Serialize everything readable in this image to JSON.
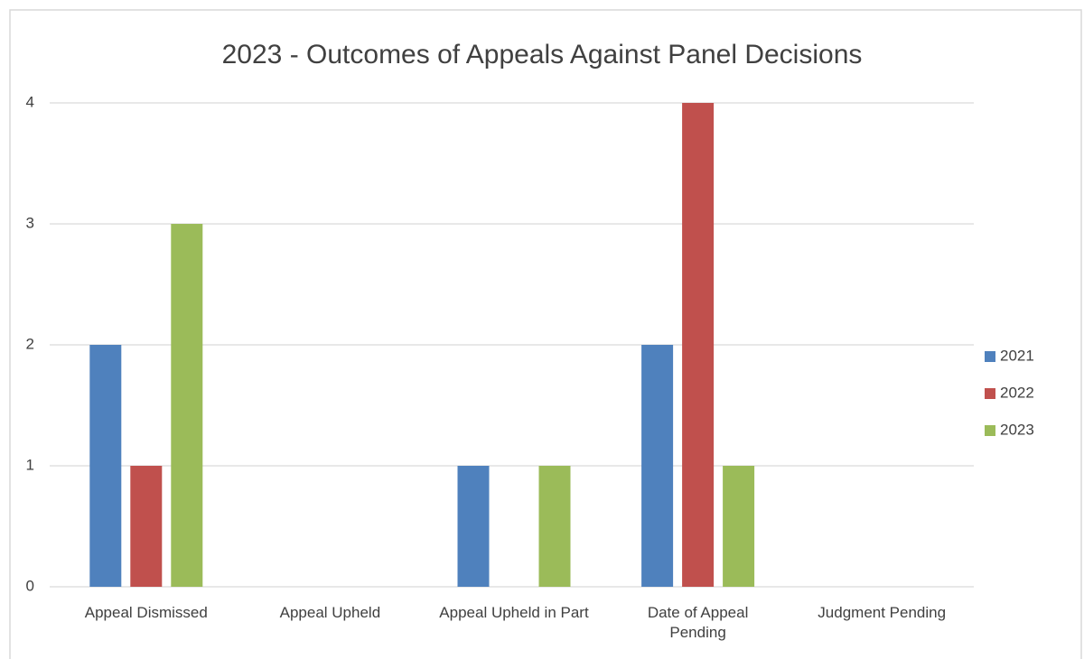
{
  "chart_data": {
    "type": "bar",
    "title": "2023 - Outcomes of Appeals Against Panel Decisions",
    "categories": [
      "Appeal Dismissed",
      "Appeal Upheld",
      "Appeal Upheld in Part",
      "Date of Appeal Pending",
      "Judgment Pending"
    ],
    "series": [
      {
        "name": "2021",
        "color": "#4f81bd",
        "values": [
          2,
          0,
          1,
          2,
          0
        ]
      },
      {
        "name": "2022",
        "color": "#c0504d",
        "values": [
          1,
          0,
          0,
          4,
          0
        ]
      },
      {
        "name": "2023",
        "color": "#9bbb59",
        "values": [
          3,
          0,
          1,
          1,
          0
        ]
      }
    ],
    "ylim": [
      0,
      4
    ],
    "yticks": [
      0,
      1,
      2,
      3,
      4
    ],
    "grid": true,
    "legend": "right"
  }
}
